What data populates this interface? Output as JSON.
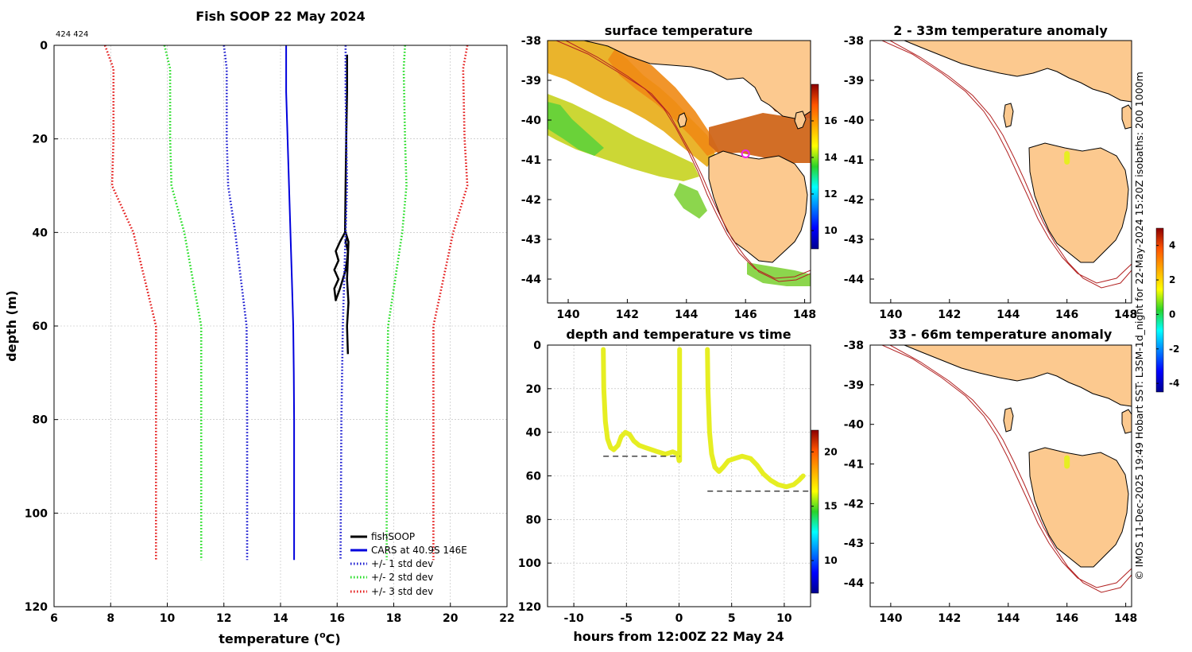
{
  "header": {
    "corner_label": "424 424"
  },
  "colors": {
    "land": "#fcc98f",
    "isobath": "#b22222",
    "fish": "#000000",
    "cars": "#0000dd",
    "std1": "#1a1ad0",
    "std2": "#22dd22",
    "std3": "#e41a1a",
    "track": "#e6ee22",
    "dash": "#333333",
    "grid": "#b8b8b8",
    "marker": "#ee22ee"
  },
  "side_text": "© IMOS 11-Dec-2025 19:49 Hobart SST: L3SM-1d_night for 22-May-2024 15:20Z  isobaths: 200  1000m",
  "chart_data": [
    {
      "id": "profile",
      "type": "line",
      "title": "Fish SOOP 22 May 2024",
      "xlabel": "temperature (",
      "xlabel_sup": "o",
      "xlabel_end": "C)",
      "ylabel": "depth (m)",
      "xlim": [
        6,
        22
      ],
      "ylim": [
        0,
        120
      ],
      "xticks": [
        "6",
        "8",
        "10",
        "12",
        "14",
        "16",
        "18",
        "20",
        "22"
      ],
      "yticks": [
        "0",
        "20",
        "40",
        "60",
        "80",
        "100",
        "120"
      ],
      "legend": [
        "fishSOOP",
        "CARS at 40.9S 146E",
        "+/- 1 std dev",
        "+/- 2 std dev",
        "+/- 3 std dev"
      ],
      "series": [
        {
          "name": "fishSOOP",
          "color": "fish",
          "style": "solid",
          "points": [
            [
              16.35,
              2
            ],
            [
              16.35,
              10
            ],
            [
              16.32,
              20
            ],
            [
              16.3,
              30
            ],
            [
              16.28,
              40
            ],
            [
              16.1,
              42
            ],
            [
              15.95,
              44
            ],
            [
              16.05,
              46
            ],
            [
              15.9,
              48
            ],
            [
              16.05,
              50
            ],
            [
              15.9,
              52
            ],
            [
              15.95,
              54.5
            ],
            [
              16.1,
              52
            ],
            [
              16.2,
              50
            ],
            [
              16.3,
              48
            ],
            [
              16.35,
              46
            ],
            [
              16.38,
              44
            ],
            [
              16.3,
              42
            ],
            [
              16.35,
              41
            ],
            [
              16.3,
              40
            ],
            [
              16.4,
              42
            ],
            [
              16.35,
              50
            ],
            [
              16.4,
              55
            ],
            [
              16.35,
              60
            ],
            [
              16.38,
              66
            ]
          ]
        },
        {
          "name": "CARS at 40.9S 146E",
          "color": "cars",
          "style": "solid",
          "points": [
            [
              14.2,
              0
            ],
            [
              14.2,
              10
            ],
            [
              14.25,
              20
            ],
            [
              14.3,
              30
            ],
            [
              14.35,
              40
            ],
            [
              14.4,
              50
            ],
            [
              14.45,
              60
            ],
            [
              14.47,
              70
            ],
            [
              14.48,
              80
            ],
            [
              14.48,
              90
            ],
            [
              14.48,
              100
            ],
            [
              14.48,
              110
            ]
          ]
        },
        {
          "name": "+/- 1 std dev",
          "color": "std1",
          "style": "dot",
          "points": [
            [
              12.0,
              0
            ],
            [
              12.1,
              5
            ],
            [
              12.1,
              20
            ],
            [
              12.15,
              30
            ],
            [
              12.4,
              40
            ],
            [
              12.8,
              60
            ],
            [
              12.82,
              80
            ],
            [
              12.82,
              110
            ]
          ]
        },
        {
          "name": "+/- 1 std dev",
          "color": "std1",
          "style": "dot",
          "points": [
            [
              16.3,
              0
            ],
            [
              16.3,
              10
            ],
            [
              16.32,
              20
            ],
            [
              16.35,
              30
            ],
            [
              16.3,
              40
            ],
            [
              16.2,
              60
            ],
            [
              16.15,
              80
            ],
            [
              16.12,
              110
            ]
          ]
        },
        {
          "name": "+/- 2 std dev",
          "color": "std2",
          "style": "dot",
          "points": [
            [
              9.9,
              0
            ],
            [
              10.1,
              5
            ],
            [
              10.1,
              20
            ],
            [
              10.15,
              30
            ],
            [
              10.6,
              40
            ],
            [
              11.2,
              60
            ],
            [
              11.2,
              80
            ],
            [
              11.2,
              110
            ]
          ]
        },
        {
          "name": "+/- 2 std dev",
          "color": "std2",
          "style": "dot",
          "points": [
            [
              18.4,
              0
            ],
            [
              18.35,
              5
            ],
            [
              18.4,
              20
            ],
            [
              18.45,
              30
            ],
            [
              18.3,
              40
            ],
            [
              17.8,
              60
            ],
            [
              17.75,
              80
            ],
            [
              17.75,
              110
            ]
          ]
        },
        {
          "name": "+/- 3 std dev",
          "color": "std3",
          "style": "dot",
          "points": [
            [
              7.8,
              0
            ],
            [
              8.1,
              5
            ],
            [
              8.1,
              20
            ],
            [
              8.05,
              30
            ],
            [
              8.8,
              40
            ],
            [
              9.6,
              60
            ],
            [
              9.6,
              80
            ],
            [
              9.6,
              110
            ]
          ]
        },
        {
          "name": "+/- 3 std dev",
          "color": "std3",
          "style": "dot",
          "points": [
            [
              20.6,
              0
            ],
            [
              20.45,
              5
            ],
            [
              20.5,
              20
            ],
            [
              20.6,
              30
            ],
            [
              20.1,
              40
            ],
            [
              19.4,
              60
            ],
            [
              19.4,
              80
            ],
            [
              19.4,
              110
            ]
          ]
        }
      ]
    },
    {
      "id": "sst",
      "type": "heatmap",
      "title": "surface temperature",
      "xlim": [
        139.3,
        148.2
      ],
      "ylim": [
        -44.6,
        -38
      ],
      "xticks": [
        "140",
        "142",
        "144",
        "146",
        "148"
      ],
      "yticks": [
        "-38",
        "-39",
        "-40",
        "-41",
        "-42",
        "-43",
        "-44"
      ],
      "colorbar": {
        "min": 9,
        "max": 18,
        "ticks": [
          "10",
          "12",
          "14",
          "16"
        ]
      },
      "marker": {
        "lon": 146.0,
        "lat": -40.85
      }
    },
    {
      "id": "time",
      "type": "scatter",
      "title": "depth and temperature vs time",
      "xlabel": "hours from 12:00Z 22 May 24",
      "xlim": [
        -12.5,
        12.5
      ],
      "ylim": [
        0,
        120
      ],
      "xticks": [
        "-10",
        "-5",
        "0",
        "5",
        "10"
      ],
      "yticks": [
        "0",
        "20",
        "40",
        "60",
        "80",
        "100",
        "120"
      ],
      "colorbar": {
        "min": 7,
        "max": 22,
        "ticks": [
          "10",
          "15",
          "20"
        ]
      },
      "segments": [
        [
          [
            -7.2,
            2
          ],
          [
            -7.15,
            20
          ],
          [
            -7.0,
            35
          ],
          [
            -6.8,
            43
          ],
          [
            -6.5,
            47
          ],
          [
            -6.2,
            48
          ],
          [
            -5.8,
            46
          ],
          [
            -5.5,
            42
          ],
          [
            -5.1,
            40
          ],
          [
            -4.7,
            41
          ],
          [
            -4.3,
            44
          ],
          [
            -3.8,
            46
          ],
          [
            -3.2,
            47
          ],
          [
            -2.6,
            48
          ],
          [
            -2.0,
            49
          ],
          [
            -1.3,
            50
          ],
          [
            -0.6,
            49
          ],
          [
            -0.1,
            50
          ],
          [
            0.0,
            53
          ]
        ],
        [
          [
            0.05,
            53
          ],
          [
            0.05,
            30
          ],
          [
            0.05,
            2
          ]
        ],
        [
          [
            2.7,
            2
          ],
          [
            2.75,
            20
          ],
          [
            2.9,
            40
          ],
          [
            3.1,
            50
          ],
          [
            3.4,
            56
          ],
          [
            3.8,
            58
          ],
          [
            4.2,
            56
          ],
          [
            4.7,
            53
          ],
          [
            5.3,
            52
          ],
          [
            6.0,
            51
          ],
          [
            6.8,
            52
          ],
          [
            7.4,
            55
          ],
          [
            8.0,
            59
          ],
          [
            8.7,
            62
          ],
          [
            9.4,
            64
          ],
          [
            10.2,
            65
          ],
          [
            10.9,
            64
          ],
          [
            11.4,
            62
          ],
          [
            11.8,
            60
          ]
        ]
      ],
      "reference_lines": [
        {
          "x": [
            -7.2,
            0.1
          ],
          "depth": 51
        },
        {
          "x": [
            2.7,
            12.5
          ],
          "depth": 67
        }
      ]
    },
    {
      "id": "anom1",
      "type": "heatmap",
      "title": "2 - 33m temperature anomaly",
      "xlim": [
        139.3,
        148.2
      ],
      "ylim": [
        -44.6,
        -38
      ],
      "xticks": [
        "140",
        "142",
        "144",
        "146",
        "148"
      ],
      "yticks": [
        "-38",
        "-39",
        "-40",
        "-41",
        "-42",
        "-43",
        "-44"
      ],
      "colorbar": {
        "min": -4.5,
        "max": 5,
        "ticks": [
          "4",
          "2",
          "0",
          "-2",
          "-4"
        ]
      },
      "track": {
        "lon": 146.0,
        "lat": [
          -40.85,
          -41.05
        ]
      }
    },
    {
      "id": "anom2",
      "type": "heatmap",
      "title": "33 - 66m temperature anomaly",
      "xlim": [
        139.3,
        148.2
      ],
      "ylim": [
        -44.6,
        -38
      ],
      "xticks": [
        "140",
        "142",
        "144",
        "146",
        "148"
      ],
      "yticks": [
        "-38",
        "-39",
        "-40",
        "-41",
        "-42",
        "-43",
        "-44"
      ],
      "track": {
        "lon": 146.0,
        "lat": [
          -40.85,
          -41.05
        ]
      }
    }
  ]
}
